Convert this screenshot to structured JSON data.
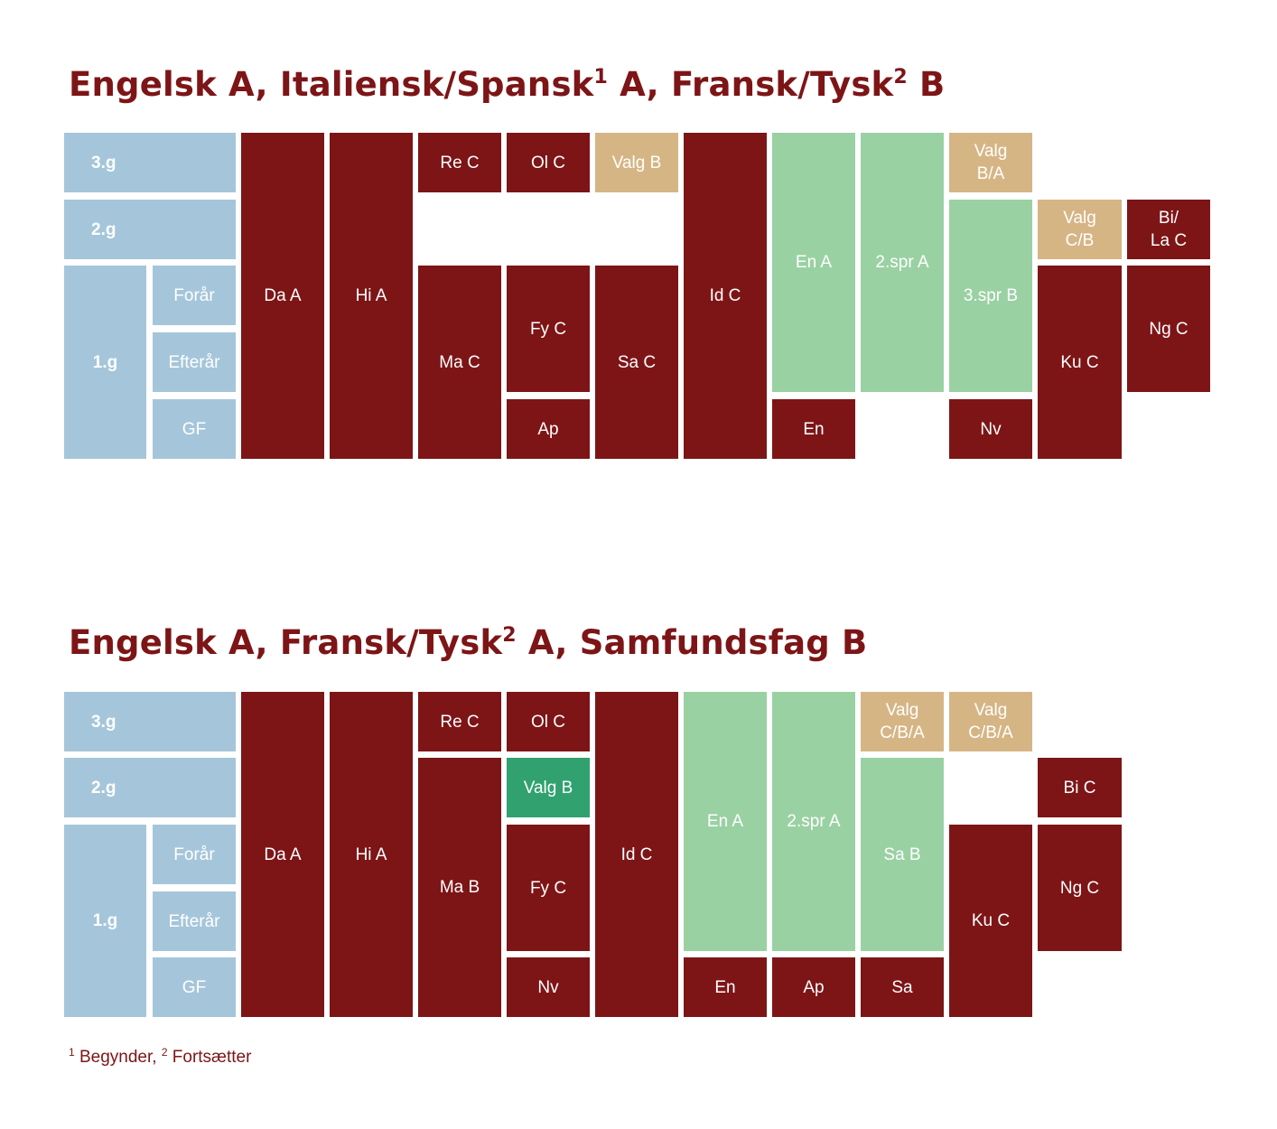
{
  "diagram1": {
    "title_parts": [
      "Engelsk A, Italiensk/Spansk",
      "1",
      " A, Fransk/Tysk",
      "2",
      " B"
    ],
    "cells": [
      {
        "id": "3g",
        "label": "3.g"
      },
      {
        "id": "2g",
        "label": "2.g"
      },
      {
        "id": "1g",
        "label": "1.g"
      },
      {
        "id": "foraar",
        "label": "Forår"
      },
      {
        "id": "efteraar",
        "label": "Efterår"
      },
      {
        "id": "gf",
        "label": "GF"
      },
      {
        "id": "da",
        "label": "Da A"
      },
      {
        "id": "hi",
        "label": "Hi A"
      },
      {
        "id": "re",
        "label": "Re C"
      },
      {
        "id": "ma",
        "label": "Ma C"
      },
      {
        "id": "ol",
        "label": "Ol C"
      },
      {
        "id": "fy",
        "label": "Fy C"
      },
      {
        "id": "ap",
        "label": "Ap"
      },
      {
        "id": "valg1",
        "label": "Valg B"
      },
      {
        "id": "sa",
        "label": "Sa C"
      },
      {
        "id": "id",
        "label": "Id C"
      },
      {
        "id": "ena",
        "label": "En A"
      },
      {
        "id": "en",
        "label": "En"
      },
      {
        "id": "spr2",
        "label": "2.spr A"
      },
      {
        "id": "valg2",
        "label": "Valg\nB/A"
      },
      {
        "id": "spr3",
        "label": "3.spr B"
      },
      {
        "id": "nv",
        "label": "Nv"
      },
      {
        "id": "valg3",
        "label": "Valg\nC/B"
      },
      {
        "id": "ku",
        "label": "Ku C"
      },
      {
        "id": "bila",
        "label": "Bi/\nLa C"
      },
      {
        "id": "ng",
        "label": "Ng C"
      }
    ]
  },
  "diagram2": {
    "title_parts": [
      "Engelsk A, Fransk/Tysk",
      "2",
      " A, Samfundsfag B"
    ],
    "cells": [
      {
        "id": "3g",
        "label": "3.g"
      },
      {
        "id": "2g",
        "label": "2.g"
      },
      {
        "id": "1g",
        "label": "1.g"
      },
      {
        "id": "foraar",
        "label": "Forår"
      },
      {
        "id": "efteraar",
        "label": "Efterår"
      },
      {
        "id": "gf",
        "label": "GF"
      },
      {
        "id": "da",
        "label": "Da A"
      },
      {
        "id": "hi",
        "label": "Hi A"
      },
      {
        "id": "re",
        "label": "Re C"
      },
      {
        "id": "ma",
        "label": "Ma B"
      },
      {
        "id": "ol",
        "label": "Ol C"
      },
      {
        "id": "valg1",
        "label": "Valg B"
      },
      {
        "id": "fy",
        "label": "Fy C"
      },
      {
        "id": "nv",
        "label": "Nv"
      },
      {
        "id": "id",
        "label": "Id C"
      },
      {
        "id": "ena",
        "label": "En A"
      },
      {
        "id": "en",
        "label": "En"
      },
      {
        "id": "spr2",
        "label": "2.spr A"
      },
      {
        "id": "ap",
        "label": "Ap"
      },
      {
        "id": "valg2",
        "label": "Valg\nC/B/A"
      },
      {
        "id": "sab",
        "label": "Sa B"
      },
      {
        "id": "sa",
        "label": "Sa"
      },
      {
        "id": "valg3",
        "label": "Valg\nC/B/A"
      },
      {
        "id": "ku",
        "label": "Ku C"
      },
      {
        "id": "bi",
        "label": "Bi C"
      },
      {
        "id": "ng",
        "label": "Ng C"
      }
    ]
  },
  "footnote_parts": [
    "1",
    " Begynder, ",
    "2",
    " Fortsætter"
  ],
  "colors": {
    "dark_red": "#7d1517",
    "light_blue": "#a5c6da",
    "tan": "#d6b585",
    "mint": "#9ad1a3",
    "teal": "#30a16f",
    "white_text": "#ffffff"
  }
}
